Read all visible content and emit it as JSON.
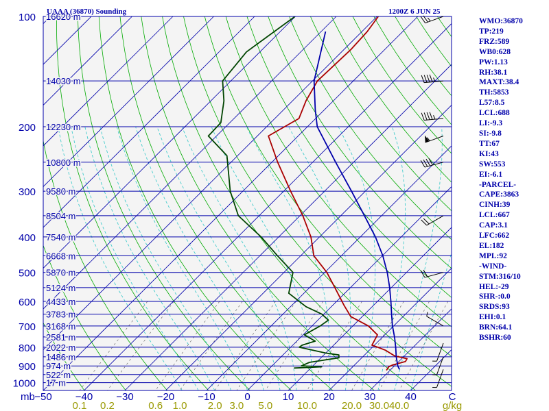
{
  "header": {
    "station": "UAAA (36870) Sounding",
    "time": "1200Z  6 JUN 25"
  },
  "indices": [
    "WMO:36870",
    "TP:219",
    "FRZ:589",
    "WB0:628",
    "PW:1.13",
    "RH:38.1",
    "MAXT:38.4",
    "TH:5853",
    "L57:8.5",
    "LCL:688",
    "LI:-9.3",
    "SI:-9.8",
    "TT:67",
    "KI:43",
    "SW:553",
    "EI:-6.1",
    "-PARCEL-",
    "CAPE:3863",
    "CINH:39",
    "LCL:667",
    "CAP:3.1",
    "LFC:662",
    "EL:182",
    "MPL:92",
    "-WIND-",
    "STM:316/10",
    "HEL:-29",
    "SHR-:0.0",
    "SRDS:93",
    "EHI:0.1",
    "BRN:64.1",
    "BSHR:60"
  ],
  "colors": {
    "background": "#f4f4f4",
    "isobar": "#0000aa",
    "skewed_isotherm": "#0000aa",
    "dry_adiabat": "#00aa00",
    "moist_adiabat": "#44cccc",
    "mixing_ratio": "#555555",
    "temperature": "#aa0000",
    "dewpoint": "#004400",
    "parcel": "#0000aa",
    "label_text": "#0000aa",
    "mixing_label": "#999900"
  },
  "chart_data": {
    "type": "skew-t log-p",
    "title": "UAAA (36870) Sounding",
    "ylabel": "mb",
    "xlabel": "",
    "pressure_ticks": [
      100,
      200,
      300,
      400,
      500,
      600,
      700,
      800,
      900,
      1000
    ],
    "temperature_ticks": [
      -50,
      -40,
      -30,
      -20,
      -10,
      0,
      10,
      20,
      30,
      40
    ],
    "temperature_tick_labels": [
      "−50",
      "−40",
      "−30",
      "−20",
      "−10",
      "0",
      "10",
      "20",
      "30",
      "40"
    ],
    "temperature_unit": "C",
    "mixing_ratio_unit": "g/kg",
    "mixing_ratio_labels": [
      "0.1",
      "0.2",
      "0.6",
      "1.0",
      "2.0",
      "3.0",
      "5.0",
      "10.0",
      "20.0",
      "30.0",
      "40.0"
    ],
    "mixing_ratio_values": [
      0.1,
      0.2,
      0.6,
      1.0,
      2.0,
      3.0,
      5.0,
      10.0,
      20.0,
      30.0,
      40.0
    ],
    "mixing_ratio_label_pressure": 1050,
    "ylim": [
      100,
      1050
    ],
    "temperature_range_at_1050": [
      -50,
      50
    ],
    "height_labels": [
      {
        "p": 100,
        "text": "16620 m"
      },
      {
        "p": 150,
        "text": "14030 m"
      },
      {
        "p": 200,
        "text": "12230 m"
      },
      {
        "p": 250,
        "text": "10800 m"
      },
      {
        "p": 300,
        "text": "9580 m"
      },
      {
        "p": 350,
        "text": "8504 m"
      },
      {
        "p": 400,
        "text": "7540 m"
      },
      {
        "p": 450,
        "text": "6668 m"
      },
      {
        "p": 500,
        "text": "5870 m"
      },
      {
        "p": 550,
        "text": "5124 m"
      },
      {
        "p": 600,
        "text": "4433 m"
      },
      {
        "p": 650,
        "text": "3783 m"
      },
      {
        "p": 700,
        "text": "3168 m"
      },
      {
        "p": 750,
        "text": "2581 m"
      },
      {
        "p": 800,
        "text": "2022 m"
      },
      {
        "p": 850,
        "text": "1486 m"
      },
      {
        "p": 900,
        "text": "974 m"
      },
      {
        "p": 950,
        "text": "522 m"
      },
      {
        "p": 1000,
        "text": "17 m"
      }
    ],
    "series": [
      {
        "name": "Temperature",
        "color": "#aa0000",
        "points": [
          {
            "p": 100,
            "t": -59.7
          },
          {
            "p": 110,
            "t": -58.7
          },
          {
            "p": 123,
            "t": -58.3
          },
          {
            "p": 150,
            "t": -58.8
          },
          {
            "p": 170,
            "t": -56.7
          },
          {
            "p": 190,
            "t": -54.1
          },
          {
            "p": 212,
            "t": -57.3
          },
          {
            "p": 250,
            "t": -48.6
          },
          {
            "p": 300,
            "t": -38.3
          },
          {
            "p": 350,
            "t": -29.3
          },
          {
            "p": 400,
            "t": -22.1
          },
          {
            "p": 450,
            "t": -16.8
          },
          {
            "p": 500,
            "t": -9.5
          },
          {
            "p": 550,
            "t": -3.8
          },
          {
            "p": 615,
            "t": 2.8
          },
          {
            "p": 660,
            "t": 7.2
          },
          {
            "p": 700,
            "t": 13.8
          },
          {
            "p": 740,
            "t": 18.2
          },
          {
            "p": 790,
            "t": 19.4
          },
          {
            "p": 800,
            "t": 21.3
          },
          {
            "p": 815,
            "t": 23.9
          },
          {
            "p": 845,
            "t": 27.6
          },
          {
            "p": 860,
            "t": 31.3
          },
          {
            "p": 875,
            "t": 31.6
          },
          {
            "p": 895,
            "t": 29.3
          },
          {
            "p": 905,
            "t": 28.8
          },
          {
            "p": 925,
            "t": 29.1
          }
        ]
      },
      {
        "name": "Dewpoint",
        "color": "#004400",
        "points": [
          {
            "p": 100,
            "t": -80.1
          },
          {
            "p": 125,
            "t": -83.3
          },
          {
            "p": 150,
            "t": -82.0
          },
          {
            "p": 170,
            "t": -76.8
          },
          {
            "p": 195,
            "t": -72.2
          },
          {
            "p": 212,
            "t": -72.0
          },
          {
            "p": 240,
            "t": -62.6
          },
          {
            "p": 300,
            "t": -53.1
          },
          {
            "p": 350,
            "t": -45.1
          },
          {
            "p": 400,
            "t": -34.3
          },
          {
            "p": 450,
            "t": -25.7
          },
          {
            "p": 500,
            "t": -17.8
          },
          {
            "p": 570,
            "t": -13.7
          },
          {
            "p": 620,
            "t": -6.2
          },
          {
            "p": 650,
            "t": -0.5
          },
          {
            "p": 675,
            "t": 2.6
          },
          {
            "p": 700,
            "t": 2.0
          },
          {
            "p": 740,
            "t": 0.3
          },
          {
            "p": 770,
            "t": 4.5
          },
          {
            "p": 790,
            "t": 2.3
          },
          {
            "p": 800,
            "t": 2.1
          },
          {
            "p": 830,
            "t": 10.0
          },
          {
            "p": 840,
            "t": 13.7
          },
          {
            "p": 855,
            "t": 14.4
          },
          {
            "p": 880,
            "t": 8.3
          },
          {
            "p": 900,
            "t": 7.2
          },
          {
            "p": 905,
            "t": 12.4
          },
          {
            "p": 912,
            "t": 5.9
          }
        ]
      },
      {
        "name": "Parcel",
        "color": "#0000aa",
        "points": [
          {
            "p": 110,
            "t": -68.9
          },
          {
            "p": 150,
            "t": -59.6
          },
          {
            "p": 180,
            "t": -52.2
          },
          {
            "p": 200,
            "t": -47.6
          },
          {
            "p": 250,
            "t": -34.4
          },
          {
            "p": 300,
            "t": -23.4
          },
          {
            "p": 350,
            "t": -14.2
          },
          {
            "p": 400,
            "t": -6.3
          },
          {
            "p": 450,
            "t": 0.1
          },
          {
            "p": 500,
            "t": 5.3
          },
          {
            "p": 550,
            "t": 9.6
          },
          {
            "p": 600,
            "t": 13.3
          },
          {
            "p": 650,
            "t": 16.6
          },
          {
            "p": 700,
            "t": 19.7
          },
          {
            "p": 750,
            "t": 22.9
          },
          {
            "p": 800,
            "t": 25.7
          },
          {
            "p": 850,
            "t": 28.2
          },
          {
            "p": 900,
            "t": 30.8
          },
          {
            "p": 920,
            "t": 32.1
          }
        ]
      }
    ],
    "wind_barbs": [
      {
        "p": 100,
        "dir": 250,
        "speed": 25
      },
      {
        "p": 150,
        "dir": 265,
        "speed": 45
      },
      {
        "p": 190,
        "dir": 265,
        "speed": 45
      },
      {
        "p": 212,
        "dir": 250,
        "speed": 55
      },
      {
        "p": 250,
        "dir": 255,
        "speed": 40
      },
      {
        "p": 350,
        "dir": 240,
        "speed": 20
      },
      {
        "p": 500,
        "dir": 255,
        "speed": 20
      },
      {
        "p": 700,
        "dir": 300,
        "speed": 5
      },
      {
        "p": 780,
        "dir": 200,
        "speed": 5
      },
      {
        "p": 850,
        "dir": 200,
        "speed": 5
      },
      {
        "p": 920,
        "dir": 200,
        "speed": 5
      }
    ]
  }
}
